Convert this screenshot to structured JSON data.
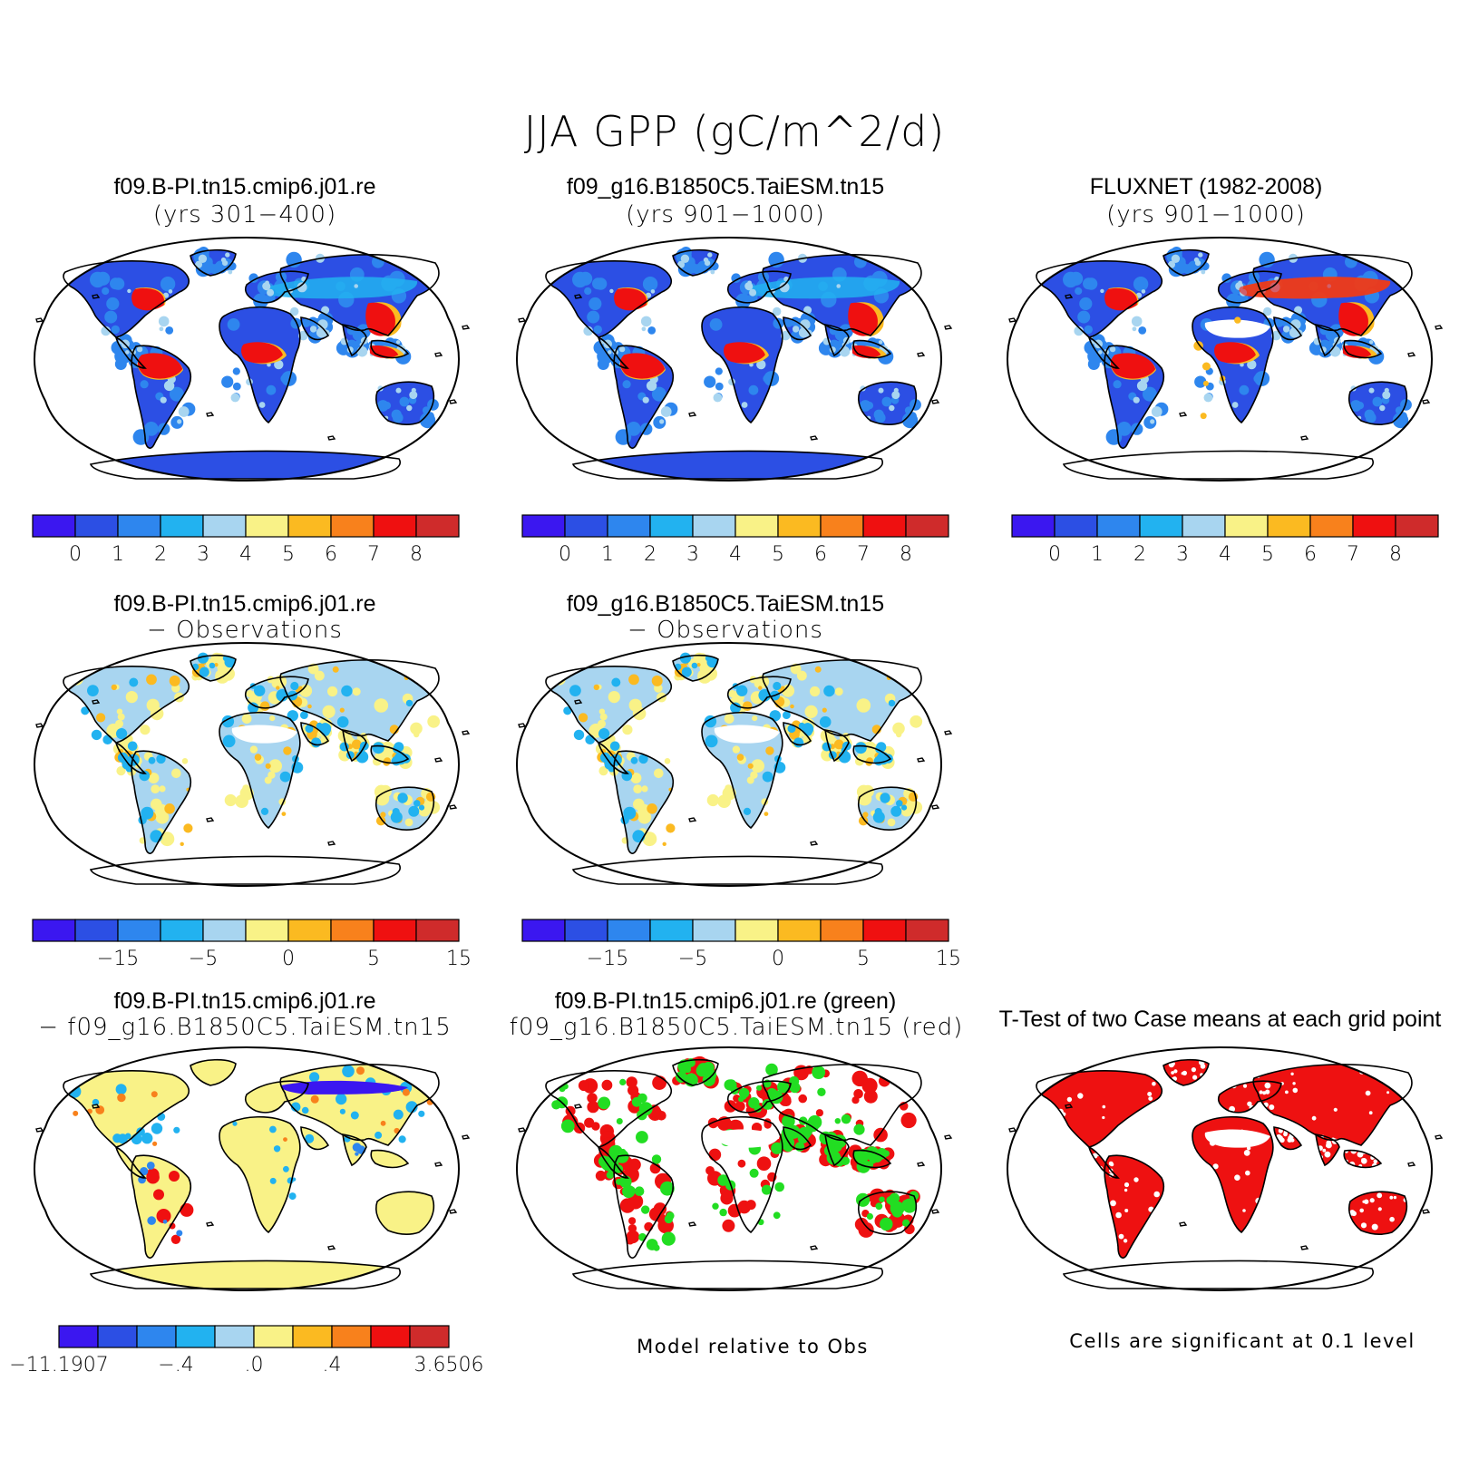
{
  "figure_title": "JJA GPP (gC/m^2/d)",
  "palette": [
    "#3b17f0",
    "#2c4fe4",
    "#2e86ee",
    "#22b2f0",
    "#a8d5f0",
    "#f9f287",
    "#fbba21",
    "#f8811c",
    "#ef1010",
    "#cf2b2b"
  ],
  "panels": [
    {
      "title": "f09.B-PI.tn15.cmip6.j01.re",
      "subtitle": "(yrs 301−400)",
      "style": "mean"
    },
    {
      "title": "f09_g16.B1850C5.TaiESM.tn15",
      "subtitle": "(yrs 901−1000)",
      "style": "mean"
    },
    {
      "title": "FLUXNET (1982-2008)",
      "subtitle": "(yrs 901−1000)",
      "style": "obs"
    },
    {
      "title": "f09.B-PI.tn15.cmip6.j01.re",
      "subtitle": "− Observations",
      "style": "bias"
    },
    {
      "title": "f09_g16.B1850C5.TaiESM.tn15",
      "subtitle": "− Observations",
      "style": "bias"
    },
    {
      "title": "f09.B-PI.tn15.cmip6.j01.re",
      "subtitle": "− f09_g16.B1850C5.TaiESM.tn15",
      "style": "diff"
    },
    {
      "title": "f09.B-PI.tn15.cmip6.j01.re (green)",
      "subtitle": "f09_g16.B1850C5.TaiESM.tn15 (red)",
      "style": "rel"
    },
    {
      "title": "T-Test of two Case means at each grid point",
      "subtitle": "",
      "style": "ttest"
    }
  ],
  "colorbars": {
    "gpp": {
      "labels": [
        "0",
        "1",
        "2",
        "3",
        "4",
        "5",
        "6",
        "7",
        "8"
      ]
    },
    "bias": {
      "labels": [
        "−15",
        "−5",
        "0",
        "5",
        "15"
      ]
    },
    "diff": {
      "labels": [
        "−11.1907",
        "−.4",
        ".0",
        ".4",
        "3.6506"
      ]
    }
  },
  "notes": {
    "relative": "Model relative to Obs",
    "ttest": "Cells are significant at 0.1 level"
  }
}
